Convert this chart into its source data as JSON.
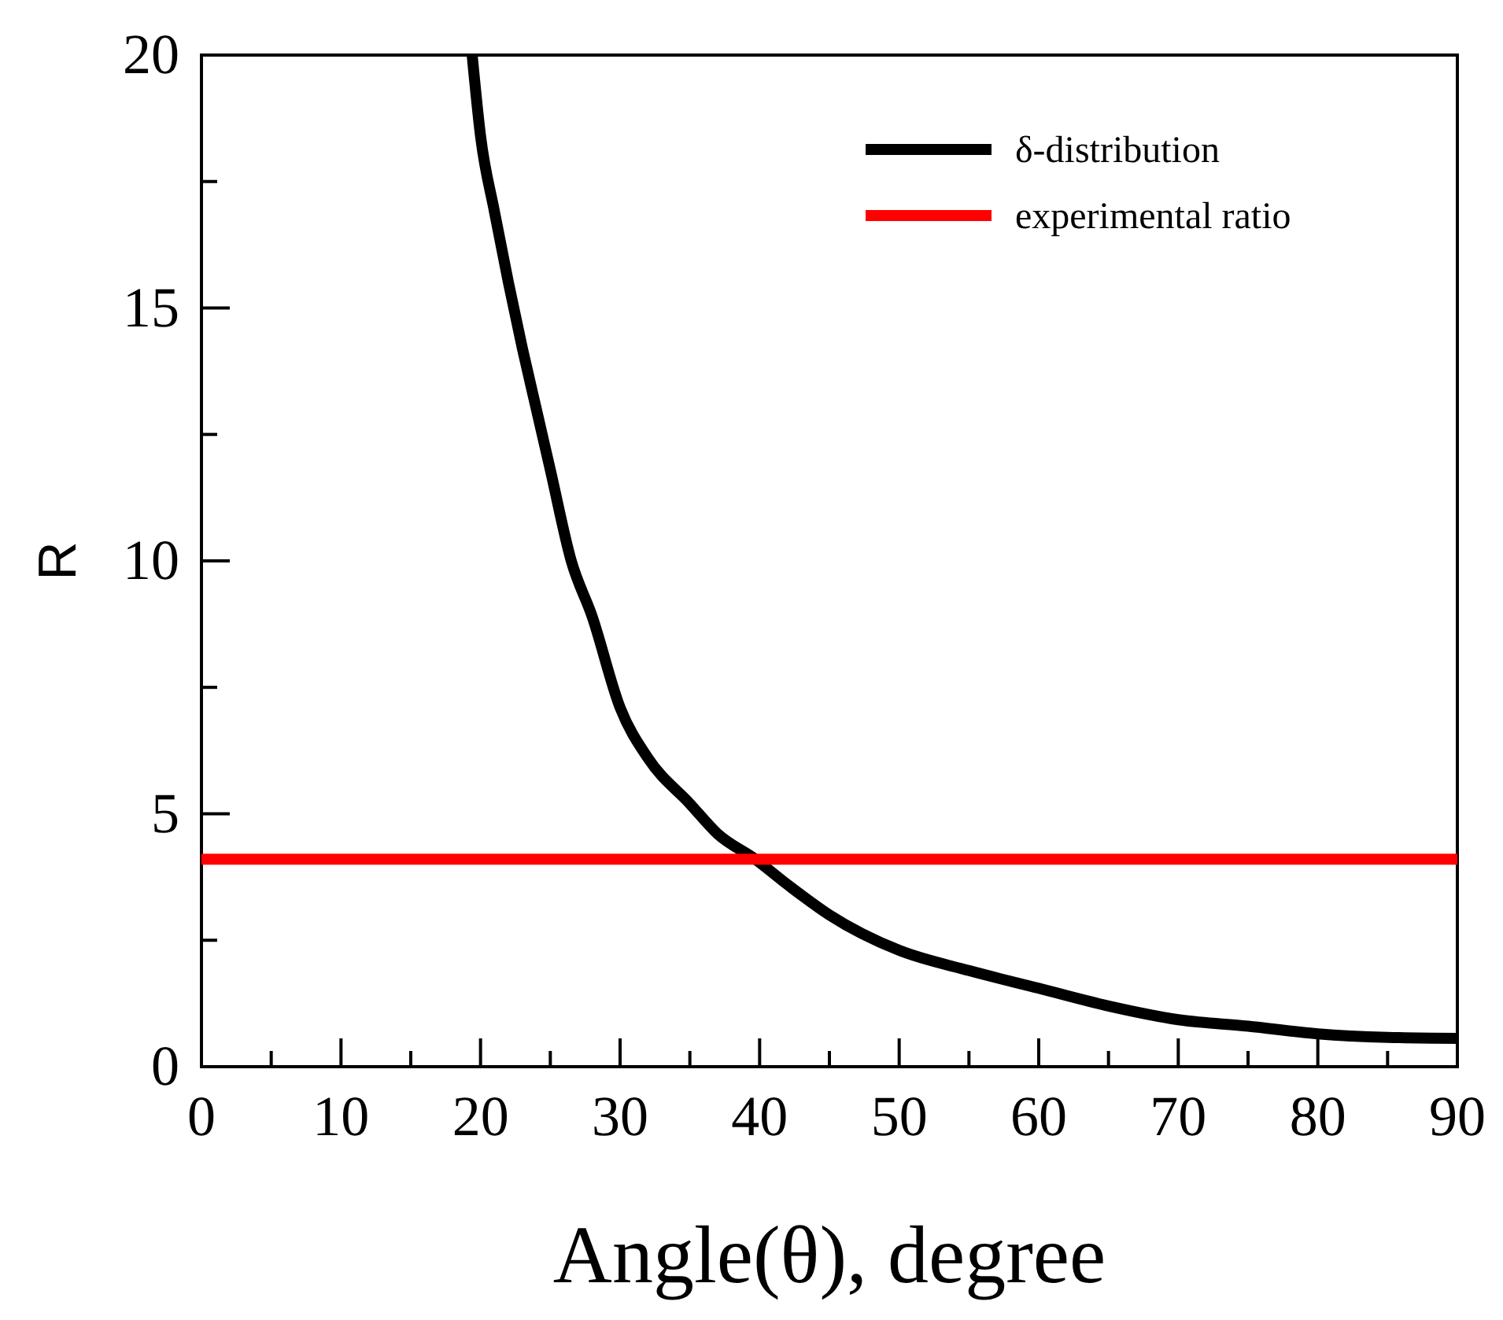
{
  "chart_data": {
    "type": "line",
    "xlabel": "Angle(θ), degree",
    "ylabel": "R",
    "xlim": [
      0,
      90
    ],
    "ylim": [
      0,
      20
    ],
    "xticks": [
      0,
      {
        "value": 5,
        "label": null
      },
      10,
      {
        "value": 15,
        "label": null
      },
      20,
      {
        "value": 25,
        "label": null
      },
      30,
      {
        "value": 35,
        "label": null
      },
      40,
      {
        "value": 45,
        "label": null
      },
      50,
      {
        "value": 55,
        "label": null
      },
      60,
      {
        "value": 65,
        "label": null
      },
      70,
      {
        "value": 75,
        "label": null
      },
      80,
      {
        "value": 85,
        "label": null
      },
      90
    ],
    "yticks": [
      0,
      {
        "value": 2.5,
        "label": null
      },
      5,
      {
        "value": 7.5,
        "label": null
      },
      10,
      {
        "value": 12.5,
        "label": null
      },
      15,
      {
        "value": 17.5,
        "label": null
      },
      20
    ],
    "legend": "top right",
    "grid": false,
    "marker": "none",
    "line_style": "solid",
    "series": [
      {
        "name": "δ-distribution",
        "color": "#000000",
        "x": [
          19.4,
          20,
          21,
          22,
          23,
          24,
          25,
          26.5,
          28,
          30,
          32,
          35,
          37,
          39.7,
          42,
          45,
          50,
          55,
          60,
          65,
          70,
          75,
          80,
          85,
          90
        ],
        "values": [
          20,
          18.4,
          16.9,
          15.5,
          14.2,
          13,
          11.8,
          10,
          8.9,
          7.1,
          6.1,
          5.2,
          4.6,
          4.1,
          3.6,
          3.0,
          2.3,
          1.9,
          1.55,
          1.2,
          0.93,
          0.8,
          0.65,
          0.58,
          0.56
        ]
      },
      {
        "name": "experimental ratio",
        "color": "#ff0000",
        "x": [
          0,
          90
        ],
        "values": [
          4.1,
          4.1
        ]
      }
    ]
  }
}
